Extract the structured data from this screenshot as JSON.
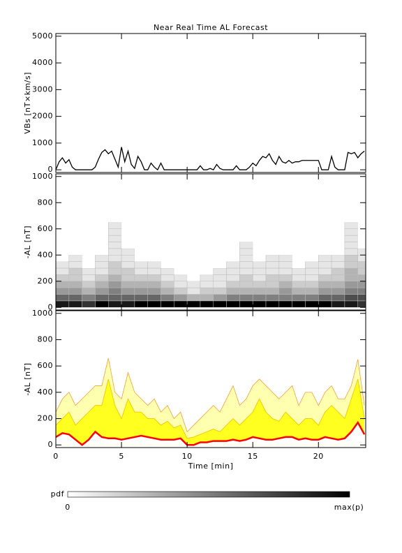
{
  "chart_data": [
    {
      "type": "line",
      "title": "Near Real Time AL Forecast",
      "ylabel": "VBs [nT×km/s]",
      "color": "#000000",
      "xlim": [
        0,
        23.6
      ],
      "xticks": [
        0,
        5,
        10,
        15,
        20
      ],
      "ylim": [
        -100,
        5100
      ],
      "yticks": [
        0,
        1000,
        2000,
        3000,
        4000,
        5000
      ],
      "x": [
        0,
        0.25,
        0.5,
        0.75,
        1,
        1.25,
        1.5,
        1.75,
        2,
        2.25,
        2.5,
        2.75,
        3,
        3.25,
        3.5,
        3.75,
        4,
        4.25,
        4.5,
        4.75,
        5,
        5.25,
        5.5,
        5.75,
        6,
        6.25,
        6.5,
        6.75,
        7,
        7.25,
        7.5,
        7.75,
        8,
        8.25,
        8.5,
        8.75,
        9,
        9.25,
        9.5,
        9.75,
        10,
        10.25,
        10.5,
        10.75,
        11,
        11.25,
        11.5,
        11.75,
        12,
        12.25,
        12.5,
        12.75,
        13,
        13.25,
        13.5,
        13.75,
        14,
        14.25,
        14.5,
        14.75,
        15,
        15.25,
        15.5,
        15.75,
        16,
        16.25,
        16.5,
        16.75,
        17,
        17.25,
        17.5,
        17.75,
        18,
        18.25,
        18.5,
        18.75,
        19,
        19.25,
        19.5,
        19.75,
        20,
        20.25,
        20.5,
        20.75,
        21,
        21.25,
        21.5,
        21.75,
        22,
        22.25,
        22.5,
        22.75,
        23,
        23.25,
        23.5
      ],
      "values": [
        0,
        300,
        450,
        250,
        380,
        100,
        0,
        0,
        0,
        0,
        0,
        0,
        100,
        400,
        650,
        750,
        600,
        700,
        400,
        100,
        850,
        300,
        700,
        200,
        50,
        500,
        300,
        0,
        0,
        250,
        100,
        0,
        250,
        0,
        0,
        0,
        0,
        0,
        0,
        0,
        0,
        0,
        0,
        0,
        150,
        0,
        0,
        50,
        0,
        200,
        50,
        0,
        0,
        0,
        0,
        150,
        0,
        0,
        0,
        100,
        250,
        150,
        350,
        500,
        450,
        600,
        350,
        200,
        500,
        300,
        250,
        350,
        250,
        300,
        300,
        350,
        350,
        350,
        350,
        350,
        350,
        0,
        0,
        0,
        500,
        100,
        0,
        0,
        0,
        650,
        600,
        650,
        450,
        600,
        700
      ]
    },
    {
      "type": "heatmap",
      "ylabel": "-AL [nT]",
      "xlim": [
        0,
        23.6
      ],
      "xticks": [
        0,
        5,
        10,
        15,
        20
      ],
      "ylim": [
        -20,
        1020
      ],
      "yticks": [
        0,
        200,
        400,
        600,
        800,
        1000
      ],
      "x_bins": [
        0,
        1,
        2,
        3,
        4,
        5,
        6,
        7,
        8,
        9,
        10,
        11,
        12,
        13,
        14,
        15,
        16,
        17,
        18,
        19,
        20,
        21,
        22,
        23,
        23.6
      ],
      "y_bins": [
        0,
        50,
        100,
        150,
        200,
        250,
        300,
        350,
        400,
        450,
        500,
        550,
        600,
        650,
        700
      ],
      "values": [
        [
          9,
          6,
          4,
          3,
          2,
          1,
          1,
          0,
          0,
          0,
          0,
          0,
          0,
          0
        ],
        [
          9,
          6,
          4,
          3,
          2,
          2,
          1,
          1,
          0,
          0,
          0,
          0,
          0,
          0
        ],
        [
          8,
          5,
          3,
          2,
          1,
          1,
          0,
          0,
          0,
          0,
          0,
          0,
          0,
          0
        ],
        [
          10,
          6,
          4,
          3,
          2,
          1,
          1,
          1,
          0,
          0,
          0,
          0,
          0,
          0
        ],
        [
          9,
          6,
          5,
          4,
          3,
          2,
          2,
          1,
          1,
          1,
          1,
          1,
          1,
          0
        ],
        [
          9,
          6,
          4,
          3,
          2,
          2,
          1,
          1,
          1,
          0,
          0,
          0,
          0,
          0
        ],
        [
          10,
          6,
          4,
          3,
          2,
          1,
          1,
          0,
          0,
          0,
          0,
          0,
          0,
          0
        ],
        [
          10,
          6,
          4,
          3,
          2,
          1,
          1,
          0,
          0,
          0,
          0,
          0,
          0,
          0
        ],
        [
          10,
          5,
          3,
          2,
          1,
          1,
          0,
          0,
          0,
          0,
          0,
          0,
          0,
          0
        ],
        [
          10,
          4,
          2,
          1,
          1,
          0,
          0,
          0,
          0,
          0,
          0,
          0,
          0,
          0
        ],
        [
          10,
          3,
          1,
          1,
          0,
          0,
          0,
          0,
          0,
          0,
          0,
          0,
          0,
          0
        ],
        [
          10,
          3,
          2,
          1,
          1,
          0,
          0,
          0,
          0,
          0,
          0,
          0,
          0,
          0
        ],
        [
          10,
          4,
          2,
          1,
          1,
          1,
          0,
          0,
          0,
          0,
          0,
          0,
          0,
          0
        ],
        [
          10,
          5,
          3,
          2,
          1,
          1,
          1,
          0,
          0,
          0,
          0,
          0,
          0,
          0
        ],
        [
          10,
          5,
          3,
          2,
          2,
          1,
          1,
          1,
          1,
          1,
          0,
          0,
          0,
          0
        ],
        [
          10,
          5,
          3,
          2,
          1,
          1,
          1,
          0,
          0,
          0,
          0,
          0,
          0,
          0
        ],
        [
          10,
          5,
          3,
          2,
          2,
          1,
          1,
          1,
          0,
          0,
          0,
          0,
          0,
          0
        ],
        [
          10,
          5,
          4,
          3,
          2,
          1,
          1,
          1,
          0,
          0,
          0,
          0,
          0,
          0
        ],
        [
          10,
          5,
          3,
          2,
          1,
          1,
          0,
          0,
          0,
          0,
          0,
          0,
          0,
          0
        ],
        [
          10,
          5,
          3,
          2,
          1,
          1,
          1,
          0,
          0,
          0,
          0,
          0,
          0,
          0
        ],
        [
          10,
          6,
          4,
          3,
          2,
          1,
          1,
          1,
          0,
          0,
          0,
          0,
          0,
          0
        ],
        [
          9,
          6,
          4,
          3,
          2,
          2,
          1,
          1,
          0,
          0,
          0,
          0,
          0,
          0
        ],
        [
          9,
          7,
          5,
          4,
          3,
          3,
          2,
          2,
          1,
          1,
          1,
          1,
          1,
          0
        ],
        [
          8,
          7,
          5,
          4,
          3,
          2,
          2,
          1,
          1,
          0,
          0,
          0,
          0,
          0
        ]
      ],
      "vmax": 10,
      "colorbar": {
        "label": "pdf",
        "min_label": "0",
        "max_label": "max(p)"
      }
    },
    {
      "type": "area",
      "ylabel": "-AL [nT]",
      "xlabel": "Time [min]",
      "xlim": [
        0,
        23.6
      ],
      "xticks": [
        0,
        5,
        10,
        15,
        20
      ],
      "ylim": [
        -20,
        1020
      ],
      "yticks": [
        0,
        200,
        400,
        600,
        800,
        1000
      ],
      "x": [
        0,
        0.5,
        1,
        1.5,
        2,
        2.5,
        3,
        3.5,
        4,
        4.5,
        5,
        5.5,
        6,
        6.5,
        7,
        7.5,
        8,
        8.5,
        9,
        9.5,
        10,
        10.5,
        11,
        11.5,
        12,
        12.5,
        13,
        13.5,
        14,
        14.5,
        15,
        15.5,
        16,
        16.5,
        17,
        17.5,
        18,
        18.5,
        19,
        19.5,
        20,
        20.5,
        21,
        21.5,
        22,
        22.5,
        23,
        23.5
      ],
      "series": [
        {
          "color": "#f0a040",
          "fill": "#ffffb0",
          "values": [
            250,
            350,
            400,
            300,
            350,
            400,
            450,
            450,
            660,
            400,
            350,
            550,
            400,
            350,
            300,
            350,
            250,
            300,
            200,
            250,
            100,
            150,
            200,
            250,
            300,
            250,
            350,
            450,
            300,
            350,
            450,
            500,
            450,
            400,
            350,
            400,
            450,
            300,
            400,
            400,
            300,
            400,
            450,
            350,
            350,
            450,
            650,
            300
          ]
        },
        {
          "color": "#f0c000",
          "fill": "#ffff20",
          "values": [
            150,
            200,
            250,
            150,
            200,
            250,
            300,
            300,
            500,
            300,
            200,
            350,
            250,
            250,
            200,
            200,
            150,
            180,
            130,
            150,
            50,
            60,
            80,
            100,
            120,
            100,
            150,
            200,
            150,
            200,
            250,
            350,
            250,
            200,
            180,
            250,
            200,
            150,
            200,
            200,
            150,
            250,
            300,
            250,
            200,
            350,
            500,
            200
          ]
        },
        {
          "color": "#ff0000",
          "fill": "#ffffff",
          "values": [
            60,
            90,
            80,
            40,
            0,
            40,
            100,
            60,
            50,
            50,
            40,
            50,
            60,
            70,
            60,
            50,
            40,
            40,
            40,
            50,
            0,
            0,
            20,
            20,
            30,
            30,
            30,
            40,
            30,
            40,
            60,
            50,
            40,
            40,
            50,
            60,
            60,
            40,
            50,
            40,
            40,
            60,
            50,
            40,
            50,
            100,
            170,
            80
          ]
        }
      ]
    }
  ]
}
